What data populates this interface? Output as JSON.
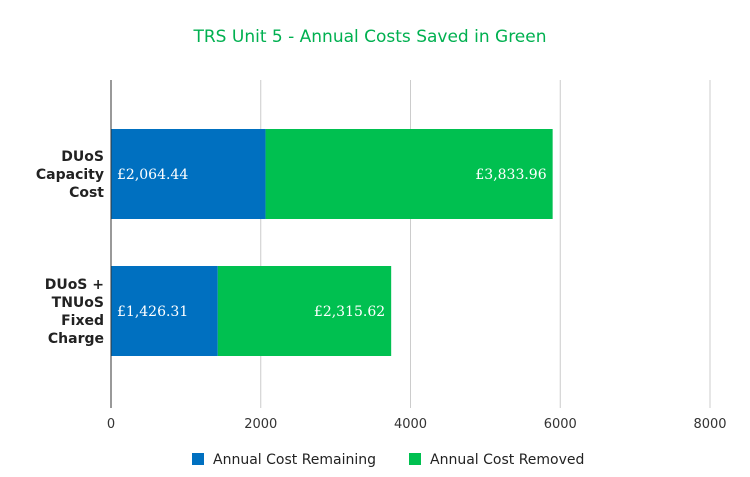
{
  "chart_data": {
    "type": "bar",
    "orientation": "horizontal",
    "stacked": true,
    "title": "TRS Unit 5 - Annual Costs Saved in Green",
    "title_color": "#00b050",
    "categories": [
      [
        "DUoS",
        "Capacity",
        "Cost"
      ],
      [
        "DUoS +",
        "TNUoS",
        "Fixed",
        "Charge"
      ]
    ],
    "series": [
      {
        "name": "Annual Cost Remaining",
        "color": "#0070c0",
        "values": [
          2064.44,
          1426.31
        ],
        "data_labels": [
          "£2,064.44",
          "£1,426.31"
        ]
      },
      {
        "name": "Annual Cost Removed",
        "color": "#00c050",
        "values": [
          3833.96,
          2315.62
        ],
        "data_labels": [
          "£3,833.96",
          "£2,315.62"
        ]
      }
    ],
    "xlim": [
      0,
      8000
    ],
    "xticks": [
      0,
      2000,
      4000,
      6000,
      8000
    ],
    "xlabel": "",
    "ylabel": "",
    "grid": true,
    "legend_position": "bottom"
  }
}
